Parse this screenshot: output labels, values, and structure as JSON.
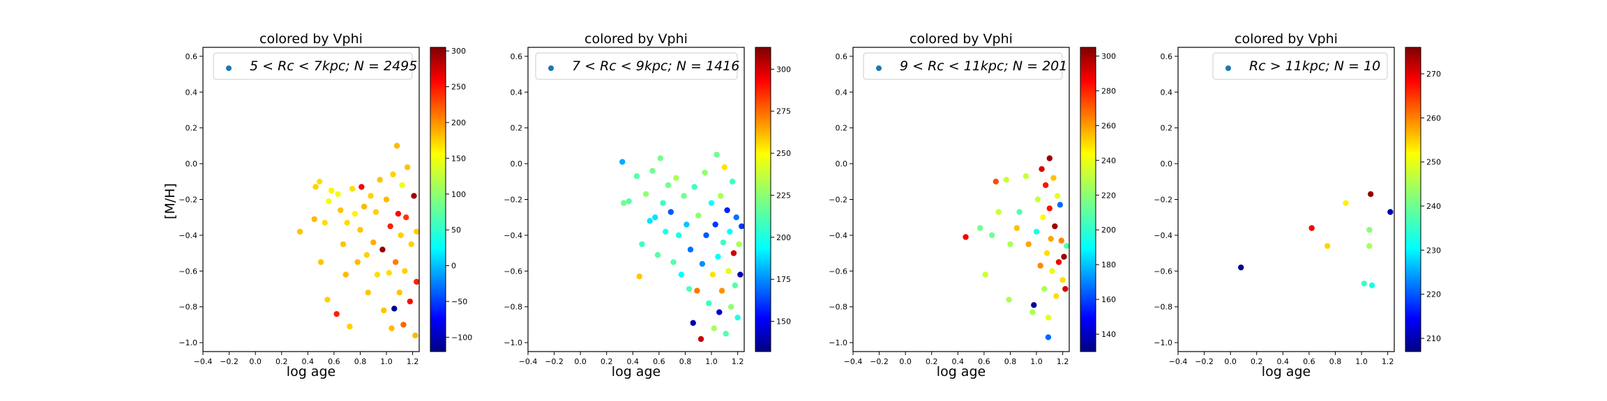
{
  "figure": {
    "ylabel": "[M/H]"
  },
  "chart_data": [
    {
      "type": "scatter",
      "title": "colored by Vphi",
      "xlabel": "log age",
      "ylabel": "[M/H]",
      "xlim": [
        -0.4,
        1.25
      ],
      "ylim": [
        -1.05,
        0.65
      ],
      "xticks": [
        "−0.4",
        "−0.2",
        "0.0",
        "0.2",
        "0.4",
        "0.6",
        "0.8",
        "1.0",
        "1.2"
      ],
      "yticks": [
        "−1.0",
        "−0.8",
        "−0.6",
        "−0.4",
        "−0.2",
        "0.0",
        "0.2",
        "0.4",
        "0.6"
      ],
      "legend": {
        "prefix": "5 < Rc < 7kpc;",
        "count": "N = 2495",
        "placement": "top-right"
      },
      "colorbar": {
        "min": -120,
        "max": 305,
        "ticks": [
          "−100",
          "−50",
          "0",
          "50",
          "100",
          "150",
          "200",
          "250",
          "300"
        ]
      },
      "sample_points": [
        [
          0.34,
          -0.38,
          170
        ],
        [
          0.45,
          -0.31,
          175
        ],
        [
          0.46,
          -0.13,
          165
        ],
        [
          0.49,
          -0.1,
          160
        ],
        [
          0.5,
          -0.55,
          170
        ],
        [
          0.53,
          -0.33,
          160
        ],
        [
          0.55,
          -0.76,
          165
        ],
        [
          0.56,
          -0.21,
          140
        ],
        [
          0.58,
          -0.15,
          150
        ],
        [
          0.62,
          -0.84,
          240
        ],
        [
          0.63,
          -0.17,
          140
        ],
        [
          0.65,
          -0.26,
          170
        ],
        [
          0.67,
          -0.45,
          170
        ],
        [
          0.69,
          -0.62,
          175
        ],
        [
          0.7,
          -0.33,
          160
        ],
        [
          0.72,
          -0.91,
          165
        ],
        [
          0.74,
          -0.14,
          160
        ],
        [
          0.76,
          -0.28,
          150
        ],
        [
          0.78,
          -0.55,
          175
        ],
        [
          0.8,
          -0.37,
          170
        ],
        [
          0.81,
          -0.13,
          255
        ],
        [
          0.83,
          -0.24,
          175
        ],
        [
          0.85,
          -0.51,
          165
        ],
        [
          0.86,
          -0.72,
          170
        ],
        [
          0.88,
          -0.18,
          165
        ],
        [
          0.9,
          -0.44,
          180
        ],
        [
          0.92,
          -0.27,
          165
        ],
        [
          0.93,
          -0.62,
          160
        ],
        [
          0.95,
          -0.09,
          170
        ],
        [
          0.97,
          -0.48,
          295
        ],
        [
          0.98,
          -0.82,
          170
        ],
        [
          1.0,
          -0.2,
          175
        ],
        [
          1.02,
          -0.61,
          160
        ],
        [
          1.03,
          -0.35,
          240
        ],
        [
          1.04,
          -0.92,
          175
        ],
        [
          1.05,
          -0.06,
          165
        ],
        [
          1.06,
          -0.81,
          -115
        ],
        [
          1.07,
          -0.55,
          200
        ],
        [
          1.08,
          0.1,
          175
        ],
        [
          1.09,
          -0.28,
          250
        ],
        [
          1.1,
          -0.72,
          170
        ],
        [
          1.11,
          -0.4,
          165
        ],
        [
          1.12,
          -0.12,
          140
        ],
        [
          1.13,
          -0.9,
          210
        ],
        [
          1.14,
          -0.6,
          165
        ],
        [
          1.15,
          -0.3,
          230
        ],
        [
          1.16,
          -0.02,
          170
        ],
        [
          1.18,
          -0.77,
          250
        ],
        [
          1.19,
          -0.45,
          165
        ],
        [
          1.21,
          -0.18,
          290
        ],
        [
          1.22,
          -0.96,
          175
        ],
        [
          1.23,
          -0.66,
          240
        ],
        [
          1.23,
          -0.38,
          165
        ]
      ]
    },
    {
      "type": "scatter",
      "title": "colored by Vphi",
      "xlabel": "log age",
      "ylabel": "",
      "xlim": [
        -0.4,
        1.25
      ],
      "ylim": [
        -1.05,
        0.65
      ],
      "xticks": [
        "−0.4",
        "−0.2",
        "0.0",
        "0.2",
        "0.4",
        "0.6",
        "0.8",
        "1.0",
        "1.2"
      ],
      "yticks": [
        "−1.0",
        "−0.8",
        "−0.6",
        "−0.4",
        "−0.2",
        "0.0",
        "0.2",
        "0.4",
        "0.6"
      ],
      "legend": {
        "prefix": "7 < Rc < 9kpc;",
        "count": "N = 1416",
        "placement": "top-right"
      },
      "colorbar": {
        "min": 132,
        "max": 313,
        "ticks": [
          "150",
          "175",
          "200",
          "225",
          "250",
          "275",
          "300"
        ]
      },
      "sample_points": [
        [
          0.32,
          0.01,
          185
        ],
        [
          0.33,
          -0.22,
          220
        ],
        [
          0.37,
          -0.21,
          215
        ],
        [
          0.43,
          -0.07,
          215
        ],
        [
          0.45,
          -0.63,
          255
        ],
        [
          0.47,
          -0.45,
          210
        ],
        [
          0.5,
          -0.17,
          225
        ],
        [
          0.53,
          -0.32,
          195
        ],
        [
          0.55,
          -0.04,
          220
        ],
        [
          0.57,
          -0.3,
          195
        ],
        [
          0.59,
          -0.51,
          215
        ],
        [
          0.61,
          0.03,
          220
        ],
        [
          0.63,
          -0.22,
          210
        ],
        [
          0.65,
          -0.38,
          205
        ],
        [
          0.67,
          -0.12,
          220
        ],
        [
          0.69,
          -0.27,
          170
        ],
        [
          0.71,
          -0.55,
          215
        ],
        [
          0.73,
          -0.08,
          230
        ],
        [
          0.75,
          -0.4,
          205
        ],
        [
          0.77,
          -0.62,
          200
        ],
        [
          0.79,
          -0.18,
          220
        ],
        [
          0.81,
          -0.34,
          190
        ],
        [
          0.83,
          -0.7,
          215
        ],
        [
          0.84,
          -0.48,
          175
        ],
        [
          0.86,
          -0.89,
          140
        ],
        [
          0.87,
          -0.13,
          210
        ],
        [
          0.89,
          -0.71,
          270
        ],
        [
          0.9,
          -0.29,
          225
        ],
        [
          0.92,
          -0.98,
          300
        ],
        [
          0.93,
          -0.56,
          180
        ],
        [
          0.95,
          -0.05,
          225
        ],
        [
          0.96,
          -0.4,
          170
        ],
        [
          0.98,
          -0.78,
          210
        ],
        [
          1.0,
          -0.22,
          200
        ],
        [
          1.01,
          -0.62,
          250
        ],
        [
          1.02,
          -0.92,
          230
        ],
        [
          1.03,
          -0.34,
          165
        ],
        [
          1.04,
          0.05,
          220
        ],
        [
          1.05,
          -0.52,
          200
        ],
        [
          1.06,
          -0.83,
          145
        ],
        [
          1.07,
          -0.18,
          230
        ],
        [
          1.08,
          -0.71,
          265
        ],
        [
          1.09,
          -0.44,
          210
        ],
        [
          1.1,
          -0.02,
          250
        ],
        [
          1.11,
          -0.95,
          215
        ],
        [
          1.12,
          -0.26,
          160
        ],
        [
          1.13,
          -0.6,
          240
        ],
        [
          1.14,
          -0.38,
          200
        ],
        [
          1.15,
          -0.8,
          225
        ],
        [
          1.16,
          -0.1,
          210
        ],
        [
          1.17,
          -0.5,
          300
        ],
        [
          1.18,
          -0.68,
          215
        ],
        [
          1.19,
          -0.3,
          175
        ],
        [
          1.2,
          -0.86,
          205
        ],
        [
          1.21,
          -0.45,
          230
        ],
        [
          1.22,
          -0.62,
          140
        ],
        [
          1.23,
          -0.35,
          165
        ]
      ]
    },
    {
      "type": "scatter",
      "title": "colored by Vphi",
      "xlabel": "log age",
      "ylabel": "",
      "xlim": [
        -0.4,
        1.25
      ],
      "ylim": [
        -1.05,
        0.65
      ],
      "xticks": [
        "−0.4",
        "−0.2",
        "0.0",
        "0.2",
        "0.4",
        "0.6",
        "0.8",
        "1.0",
        "1.2"
      ],
      "yticks": [
        "−1.0",
        "−0.8",
        "−0.6",
        "−0.4",
        "−0.2",
        "0.0",
        "0.2",
        "0.4",
        "0.6"
      ],
      "legend": {
        "prefix": "9 < Rc < 11kpc;",
        "count": "N = 201",
        "placement": "top-right"
      },
      "colorbar": {
        "min": 130,
        "max": 305,
        "ticks": [
          "140",
          "160",
          "180",
          "200",
          "220",
          "240",
          "260",
          "280",
          "300"
        ]
      },
      "sample_points": [
        [
          0.46,
          -0.41,
          285
        ],
        [
          0.57,
          -0.36,
          215
        ],
        [
          0.61,
          -0.62,
          230
        ],
        [
          0.66,
          -0.4,
          215
        ],
        [
          0.69,
          -0.1,
          270
        ],
        [
          0.71,
          -0.27,
          230
        ],
        [
          0.77,
          -0.09,
          230
        ],
        [
          0.79,
          -0.76,
          225
        ],
        [
          0.8,
          -0.45,
          225
        ],
        [
          0.85,
          -0.36,
          250
        ],
        [
          0.87,
          -0.27,
          210
        ],
        [
          0.92,
          -0.07,
          230
        ],
        [
          0.94,
          -0.45,
          255
        ],
        [
          0.97,
          -0.83,
          225
        ],
        [
          0.98,
          -0.79,
          135
        ],
        [
          1.0,
          -0.38,
          200
        ],
        [
          1.01,
          -0.2,
          230
        ],
        [
          1.03,
          -0.57,
          260
        ],
        [
          1.04,
          -0.03,
          290
        ],
        [
          1.05,
          -0.3,
          240
        ],
        [
          1.06,
          -0.7,
          225
        ],
        [
          1.07,
          -0.12,
          280
        ],
        [
          1.08,
          -0.5,
          245
        ],
        [
          1.09,
          -0.86,
          235
        ],
        [
          1.09,
          -0.97,
          170
        ],
        [
          1.1,
          0.03,
          300
        ],
        [
          1.1,
          -0.25,
          280
        ],
        [
          1.11,
          -0.42,
          255
        ],
        [
          1.12,
          -0.6,
          235
        ],
        [
          1.13,
          -0.08,
          250
        ],
        [
          1.14,
          -0.35,
          300
        ],
        [
          1.15,
          -0.74,
          245
        ],
        [
          1.16,
          -0.18,
          235
        ],
        [
          1.17,
          -0.55,
          285
        ],
        [
          1.18,
          -0.23,
          170
        ],
        [
          1.19,
          -0.43,
          260
        ],
        [
          1.2,
          -0.65,
          245
        ],
        [
          1.21,
          -0.52,
          300
        ],
        [
          1.22,
          -0.7,
          290
        ],
        [
          1.23,
          -0.46,
          210
        ]
      ]
    },
    {
      "type": "scatter",
      "title": "colored by Vphi",
      "xlabel": "log age",
      "ylabel": "",
      "xlim": [
        -0.4,
        1.25
      ],
      "ylim": [
        -1.05,
        0.65
      ],
      "xticks": [
        "−0.4",
        "−0.2",
        "0.0",
        "0.2",
        "0.4",
        "0.6",
        "0.8",
        "1.0",
        "1.2"
      ],
      "yticks": [
        "−1.0",
        "−0.8",
        "−0.6",
        "−0.4",
        "−0.2",
        "0.0",
        "0.2",
        "0.4",
        "0.6"
      ],
      "legend": {
        "prefix": "Rc > 11kpc;",
        "count": "N = 10",
        "placement": "top-right"
      },
      "colorbar": {
        "min": 207,
        "max": 276,
        "ticks": [
          "210",
          "220",
          "230",
          "240",
          "250",
          "260",
          "270"
        ]
      },
      "points": [
        [
          0.08,
          -0.58,
          208
        ],
        [
          0.62,
          -0.36,
          268
        ],
        [
          0.74,
          -0.46,
          253
        ],
        [
          0.88,
          -0.22,
          251
        ],
        [
          1.02,
          -0.67,
          237
        ],
        [
          1.06,
          -0.37,
          242
        ],
        [
          1.06,
          -0.46,
          244
        ],
        [
          1.07,
          -0.17,
          275
        ],
        [
          1.08,
          -0.68,
          234
        ],
        [
          1.22,
          -0.27,
          210
        ]
      ]
    }
  ]
}
